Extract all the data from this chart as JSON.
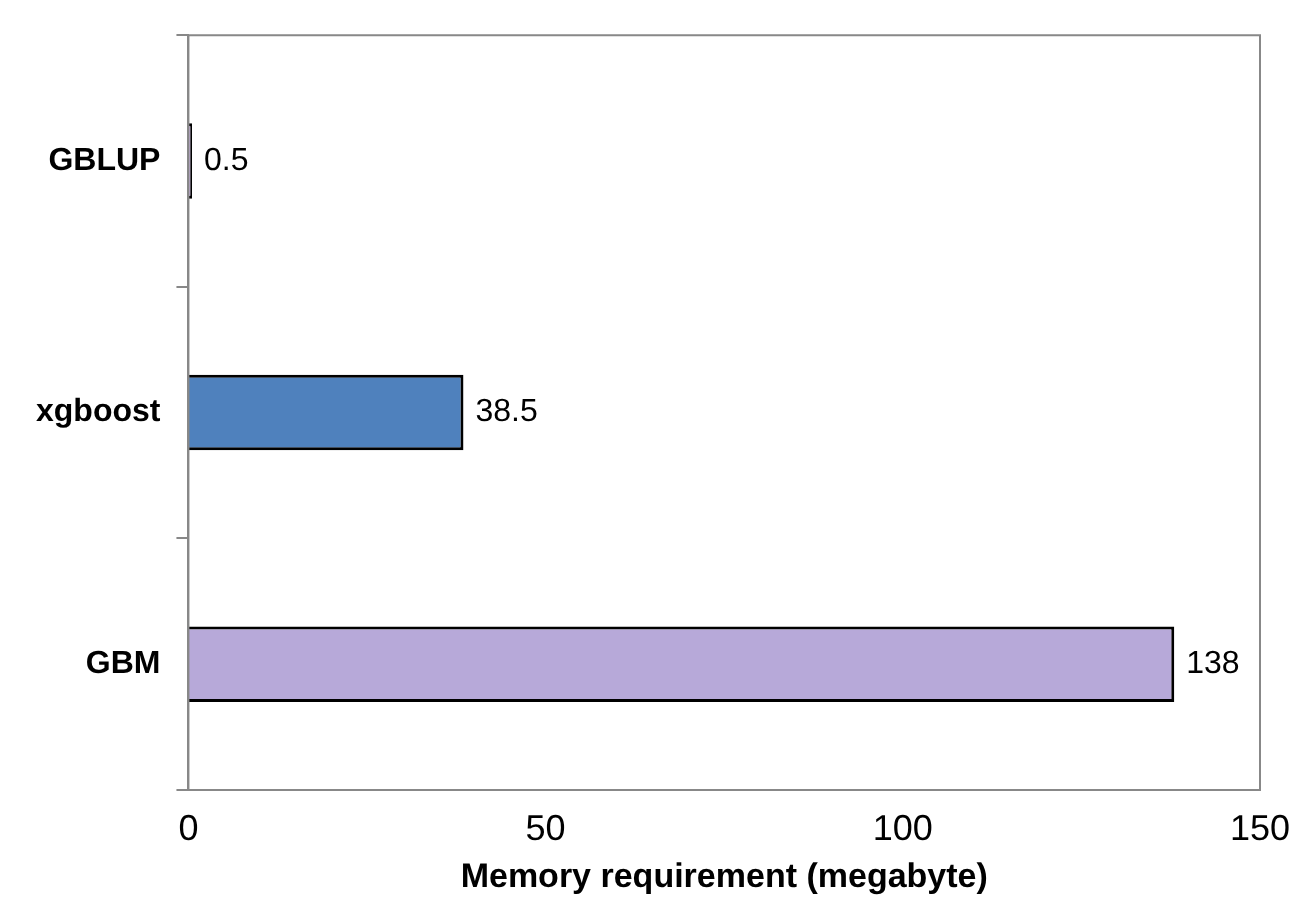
{
  "chart_data": {
    "type": "bar",
    "orientation": "horizontal",
    "xlabel": "Memory requirement (megabyte)",
    "categories": [
      "GBLUP",
      "xgboost",
      "GBM"
    ],
    "values": [
      0.5,
      38.5,
      138
    ],
    "colors": [
      "#c9b3e0",
      "#4f81bd",
      "#b7a9d9"
    ],
    "xlim": [
      0,
      150
    ],
    "xticks": [
      0,
      50,
      100,
      150
    ],
    "grid": false,
    "data_labels": true
  }
}
